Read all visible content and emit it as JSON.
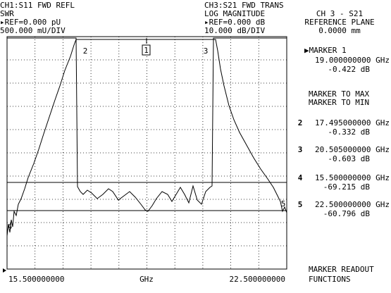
{
  "header": {
    "ch1": [
      "CH1:S11 FWD REFL",
      "SWR",
      "▸REF=0.000 pU",
      "500.000 mU/DIV"
    ],
    "ch3": [
      "CH3:S21 FWD TRANS",
      "LOG MAGNITUDE",
      "▸REF=0.000 dB",
      "10.000 dB/DIV"
    ]
  },
  "sidebar": {
    "channel": [
      "CH 3 - S21",
      "REFERENCE PLANE",
      "0.0000 mm"
    ],
    "active_marker": {
      "label": "▶MARKER 1",
      "frequency": "19.000000000 GHz",
      "value": "-0.422 dB"
    },
    "functions": [
      "MARKER TO MAX",
      "MARKER TO MIN"
    ],
    "markers": [
      {
        "number": "2",
        "frequency": "17.495000000 GHz",
        "value": "-0.332 dB"
      },
      {
        "number": "3",
        "frequency": "20.505000000 GHz",
        "value": "-0.603 dB"
      },
      {
        "number": "4",
        "frequency": "15.500000000 GHz",
        "value": "-69.215 dB"
      },
      {
        "number": "5",
        "frequency": "22.500000000 GHz",
        "value": "-60.796 dB"
      }
    ],
    "softkey": [
      "MARKER READOUT",
      "FUNCTIONS"
    ]
  },
  "plot": {
    "marker_labels": [
      "1",
      "2",
      "3",
      "4",
      "5"
    ]
  },
  "footer": {
    "start": "15.500000000",
    "unit": "GHz",
    "stop": "22.500000000"
  }
}
